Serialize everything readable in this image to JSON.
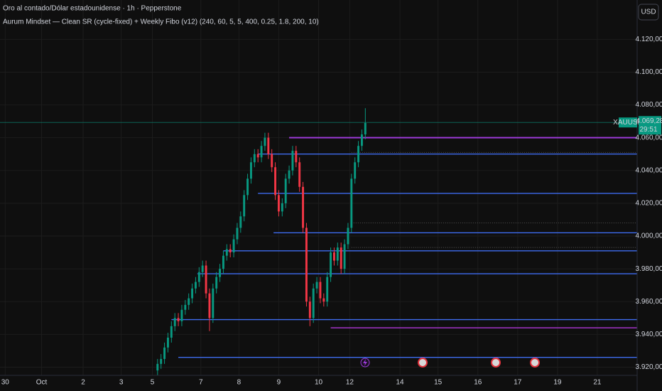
{
  "chart_data": {
    "type": "candlestick",
    "title": "Oro al contado/Dólar estadounidense · 1h · Pepperstone",
    "subtitle": "Aurum Mindset — Clean SR (cycle-fixed) + Weekly Fibo (v12) (240, 60, 5, 5, 400, 0.25, 1.8, 200, 10)",
    "currency": "USD",
    "symbol": "XAUUSD",
    "last_price": {
      "value": 4069.28,
      "label": "4.069,28"
    },
    "countdown": "29:51",
    "up_color": "#089981",
    "down_color": "#f23645",
    "grid": true,
    "xlim": [
      -3,
      365
    ],
    "ylim": [
      3915,
      4144
    ],
    "xticks": [
      {
        "value": 0,
        "label": "30"
      },
      {
        "value": 21,
        "label": "Oct"
      },
      {
        "value": 45,
        "label": "2"
      },
      {
        "value": 67,
        "label": "3"
      },
      {
        "value": 85,
        "label": "5"
      },
      {
        "value": 113,
        "label": "7"
      },
      {
        "value": 135,
        "label": "8"
      },
      {
        "value": 158,
        "label": "9"
      },
      {
        "value": 181,
        "label": "10"
      },
      {
        "value": 199,
        "label": "12"
      },
      {
        "value": 228,
        "label": "14"
      },
      {
        "value": 250,
        "label": "15"
      },
      {
        "value": 273,
        "label": "16"
      },
      {
        "value": 296,
        "label": "17"
      },
      {
        "value": 319,
        "label": "19"
      },
      {
        "value": 342,
        "label": "21"
      }
    ],
    "yticks": [
      {
        "value": 3920,
        "label": "3.920,00"
      },
      {
        "value": 3940,
        "label": "3.940,00"
      },
      {
        "value": 3960,
        "label": "3.960,00"
      },
      {
        "value": 3980,
        "label": "3.980,00"
      },
      {
        "value": 4000,
        "label": "4.000,00"
      },
      {
        "value": 4020,
        "label": "4.020,00"
      },
      {
        "value": 4040,
        "label": "4.040,00"
      },
      {
        "value": 4060,
        "label": "4.060,00"
      },
      {
        "value": 4080,
        "label": "4.080,00"
      },
      {
        "value": 4100,
        "label": "4.100,00"
      },
      {
        "value": 4120,
        "label": "4.120,00"
      }
    ],
    "x": [
      88,
      90,
      92,
      94,
      96,
      98,
      100,
      102,
      104,
      106,
      108,
      110,
      112,
      114,
      116,
      118,
      120,
      122,
      124,
      126,
      128,
      130,
      132,
      134,
      136,
      138,
      140,
      142,
      144,
      146,
      148,
      150,
      152,
      154,
      156,
      158,
      160,
      162,
      164,
      166,
      168,
      170,
      172,
      174,
      176,
      178,
      180,
      182,
      184,
      186,
      188,
      190,
      192,
      194,
      196,
      198,
      200,
      202,
      204,
      206,
      208
    ],
    "open": [
      3918,
      3922,
      3925,
      3932,
      3938,
      3945,
      3950,
      3948,
      3955,
      3958,
      3962,
      3968,
      3972,
      3978,
      3982,
      3965,
      3950,
      3968,
      3975,
      3980,
      3988,
      3992,
      3990,
      3998,
      4005,
      4012,
      4025,
      4035,
      4045,
      4050,
      4048,
      4055,
      4060,
      4050,
      4042,
      4025,
      4015,
      4020,
      4035,
      4040,
      4052,
      4045,
      4030,
      4005,
      3960,
      3950,
      3968,
      3972,
      3962,
      3960,
      3975,
      3990,
      3985,
      3993,
      3980,
      3995,
      4005,
      4035,
      4045,
      4055,
      4062
    ],
    "high": [
      3925,
      3928,
      3935,
      3941,
      3948,
      3953,
      3953,
      3958,
      3961,
      3965,
      3971,
      3975,
      3981,
      3985,
      3985,
      3968,
      3971,
      3978,
      3983,
      3991,
      3995,
      3995,
      4001,
      4008,
      4015,
      4028,
      4038,
      4048,
      4053,
      4053,
      4058,
      4063,
      4063,
      4053,
      4045,
      4028,
      4023,
      4038,
      4043,
      4055,
      4055,
      4048,
      4033,
      4008,
      3963,
      3971,
      3975,
      3975,
      3965,
      3978,
      3993,
      3993,
      3996,
      3996,
      3998,
      4008,
      4038,
      4048,
      4058,
      4065,
      4078
    ],
    "low": [
      3915,
      3919,
      3922,
      3929,
      3935,
      3942,
      3945,
      3945,
      3952,
      3955,
      3959,
      3965,
      3969,
      3975,
      3962,
      3942,
      3947,
      3965,
      3972,
      3977,
      3985,
      3987,
      3987,
      3995,
      4002,
      4009,
      4022,
      4032,
      4042,
      4045,
      4045,
      4052,
      4047,
      4039,
      4022,
      4012,
      4012,
      4017,
      4032,
      4037,
      4042,
      4027,
      4002,
      3957,
      3945,
      3947,
      3965,
      3959,
      3957,
      3957,
      3972,
      3982,
      3982,
      3977,
      3977,
      3992,
      4002,
      4032,
      4042,
      4052,
      4059
    ],
    "close": [
      3922,
      3925,
      3932,
      3938,
      3945,
      3950,
      3948,
      3955,
      3958,
      3962,
      3968,
      3972,
      3978,
      3982,
      3965,
      3950,
      3968,
      3975,
      3980,
      3988,
      3992,
      3990,
      3998,
      4005,
      4012,
      4025,
      4035,
      4045,
      4050,
      4048,
      4055,
      4060,
      4050,
      4042,
      4025,
      4015,
      4020,
      4035,
      4040,
      4052,
      4045,
      4030,
      4005,
      3960,
      3950,
      3968,
      3972,
      3962,
      3960,
      3975,
      3990,
      3985,
      3993,
      3980,
      3995,
      4005,
      4035,
      4045,
      4055,
      4062,
      4069
    ],
    "levels": [
      {
        "price": 4060,
        "start": 164,
        "color": "#9c3ad8"
      },
      {
        "price": 4050,
        "start": 146,
        "color": "#3f6cf0"
      },
      {
        "price": 4026,
        "start": 146,
        "color": "#3f6cf0"
      },
      {
        "price": 4002,
        "start": 155,
        "color": "#3f6cf0"
      },
      {
        "price": 3991,
        "start": 126,
        "color": "#3f6cf0"
      },
      {
        "price": 3977,
        "start": 111,
        "color": "#3f6cf0"
      },
      {
        "price": 3949,
        "start": 96,
        "color": "#3f6cf0"
      },
      {
        "price": 3944,
        "start": 188,
        "color": "#a333c8"
      },
      {
        "price": 3926,
        "start": 100,
        "color": "#3f6cf0"
      }
    ],
    "dotted_levels": [
      {
        "price": 4051,
        "start": 200
      },
      {
        "price": 4008,
        "start": 200
      },
      {
        "price": 3993,
        "start": 200
      }
    ]
  }
}
